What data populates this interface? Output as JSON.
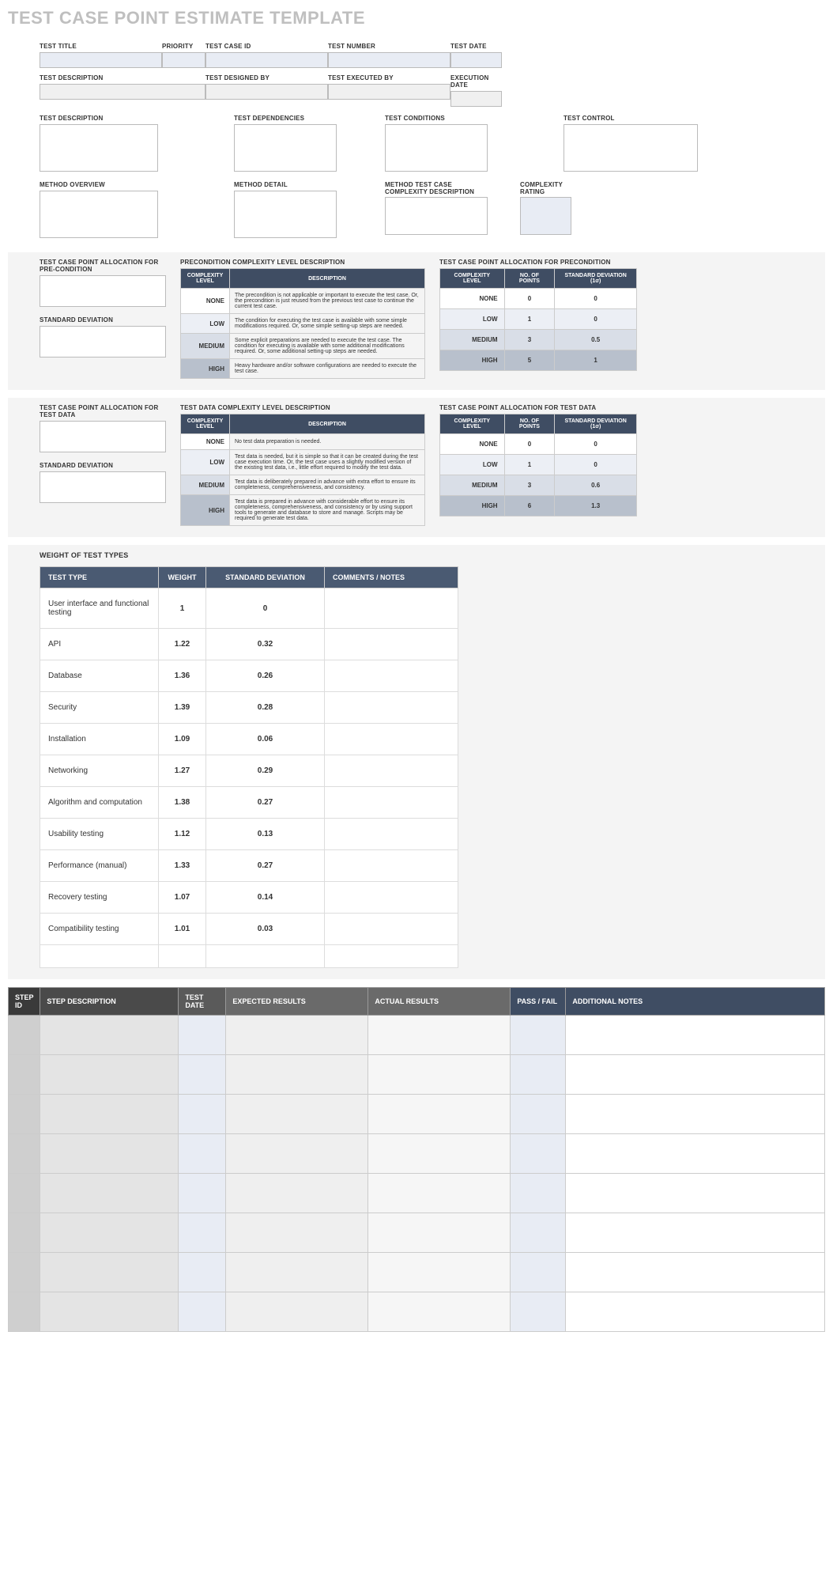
{
  "title": "TEST CASE POINT ESTIMATE TEMPLATE",
  "headerRow1": {
    "testTitle": "TEST TITLE",
    "priority": "PRIORITY",
    "testCaseId": "TEST CASE ID",
    "testNumber": "TEST NUMBER",
    "testDate": "TEST DATE"
  },
  "headerRow2": {
    "testDescription": "TEST DESCRIPTION",
    "testDesignedBy": "TEST DESIGNED BY",
    "testExecutedBy": "TEST EXECUTED BY",
    "executionDate": "EXECUTION DATE"
  },
  "textareas1": {
    "testDescription": "TEST DESCRIPTION",
    "testDependencies": "TEST DEPENDENCIES",
    "testConditions": "TEST CONDITIONS",
    "testControl": "TEST CONTROL"
  },
  "textareas2": {
    "methodOverview": "METHOD OVERVIEW",
    "methodDetail": "METHOD DETAIL",
    "methodComplexity": "METHOD TEST CASE COMPLEXITY DESCRIPTION",
    "complexityRating": "COMPLEXITY RATING"
  },
  "precondition": {
    "allocLabel": "TEST CASE POINT ALLOCATION FOR PRE-CONDITION",
    "sdLabel": "STANDARD DEVIATION",
    "descTitle": "PRECONDITION COMPLEXITY LEVEL DESCRIPTION",
    "allocTitle": "TEST CASE POINT ALLOCATION FOR PRECONDITION",
    "cols": {
      "level": "COMPLEXITY LEVEL",
      "desc": "DESCRIPTION",
      "points": "NO. OF POINTS",
      "sd": "STANDARD DEVIATION (1σ)"
    },
    "rows": [
      {
        "level": "NONE",
        "desc": "The precondition is not applicable or important to execute the test case. Or, the precondition is just reused from the previous test case to continue the current test case.",
        "points": "0",
        "sd": "0"
      },
      {
        "level": "LOW",
        "desc": "The condition for executing the test case is available with some simple modifications required. Or, some simple setting-up steps are needed.",
        "points": "1",
        "sd": "0"
      },
      {
        "level": "MEDIUM",
        "desc": "Some explicit preparations are needed to execute the test case. The condition for executing is available with some additional modifications required. Or, some additional setting-up steps are needed.",
        "points": "3",
        "sd": "0.5"
      },
      {
        "level": "HIGH",
        "desc": "Heavy hardware and/or software configurations are needed to execute the test case.",
        "points": "5",
        "sd": "1"
      }
    ]
  },
  "testdata": {
    "allocLabel": "TEST CASE POINT ALLOCATION FOR TEST DATA",
    "sdLabel": "STANDARD DEVIATION",
    "descTitle": "TEST DATA COMPLEXITY LEVEL DESCRIPTION",
    "allocTitle": "TEST CASE POINT ALLOCATION FOR TEST DATA",
    "cols": {
      "level": "COMPLEXITY LEVEL",
      "desc": "DESCRIPTION",
      "points": "NO. OF POINTS",
      "sd": "STANDARD DEVIATION (1σ)"
    },
    "rows": [
      {
        "level": "NONE",
        "desc": "No test data preparation is needed.",
        "points": "0",
        "sd": "0"
      },
      {
        "level": "LOW",
        "desc": "Test data is needed, but it is simple so that it can be created during the test case execution time. Or, the test case uses a slightly modified version of the existing test data, i.e., little effort required to modify the test data.",
        "points": "1",
        "sd": "0"
      },
      {
        "level": "MEDIUM",
        "desc": "Test data is deliberately prepared in advance with extra effort to ensure its completeness, comprehensiveness, and consistency.",
        "points": "3",
        "sd": "0.6"
      },
      {
        "level": "HIGH",
        "desc": "Test data is prepared in advance with considerable effort to ensure its completeness, comprehensiveness, and consistency or by using support tools to generate and database to store and manage. Scripts may be required to generate test data.",
        "points": "6",
        "sd": "1.3"
      }
    ]
  },
  "weights": {
    "title": "WEIGHT OF TEST TYPES",
    "cols": {
      "type": "TEST TYPE",
      "weight": "WEIGHT",
      "sd": "STANDARD DEVIATION",
      "comments": "COMMENTS / NOTES"
    },
    "rows": [
      {
        "type": "User interface and functional testing",
        "weight": "1",
        "sd": "0",
        "comments": ""
      },
      {
        "type": "API",
        "weight": "1.22",
        "sd": "0.32",
        "comments": ""
      },
      {
        "type": "Database",
        "weight": "1.36",
        "sd": "0.26",
        "comments": ""
      },
      {
        "type": "Security",
        "weight": "1.39",
        "sd": "0.28",
        "comments": ""
      },
      {
        "type": "Installation",
        "weight": "1.09",
        "sd": "0.06",
        "comments": ""
      },
      {
        "type": "Networking",
        "weight": "1.27",
        "sd": "0.29",
        "comments": ""
      },
      {
        "type": "Algorithm and computation",
        "weight": "1.38",
        "sd": "0.27",
        "comments": ""
      },
      {
        "type": "Usability testing",
        "weight": "1.12",
        "sd": "0.13",
        "comments": ""
      },
      {
        "type": "Performance (manual)",
        "weight": "1.33",
        "sd": "0.27",
        "comments": ""
      },
      {
        "type": "Recovery testing",
        "weight": "1.07",
        "sd": "0.14",
        "comments": ""
      },
      {
        "type": "Compatibility testing",
        "weight": "1.01",
        "sd": "0.03",
        "comments": ""
      },
      {
        "type": "",
        "weight": "",
        "sd": "",
        "comments": ""
      }
    ]
  },
  "steps": {
    "cols": {
      "stepId": "STEP ID",
      "stepDesc": "STEP DESCRIPTION",
      "testDate": "TEST DATE",
      "expected": "EXPECTED RESULTS",
      "actual": "ACTUAL RESULTS",
      "passFail": "PASS / FAIL",
      "notes": "ADDITIONAL NOTES"
    },
    "rowCount": 8
  },
  "colors": {
    "headerDark": "#3f4d63",
    "lvlNone": "#ffffff",
    "lvlLow": "#eceff5",
    "lvlMed": "#d9dee7",
    "lvlHigh": "#b8c0cc"
  }
}
